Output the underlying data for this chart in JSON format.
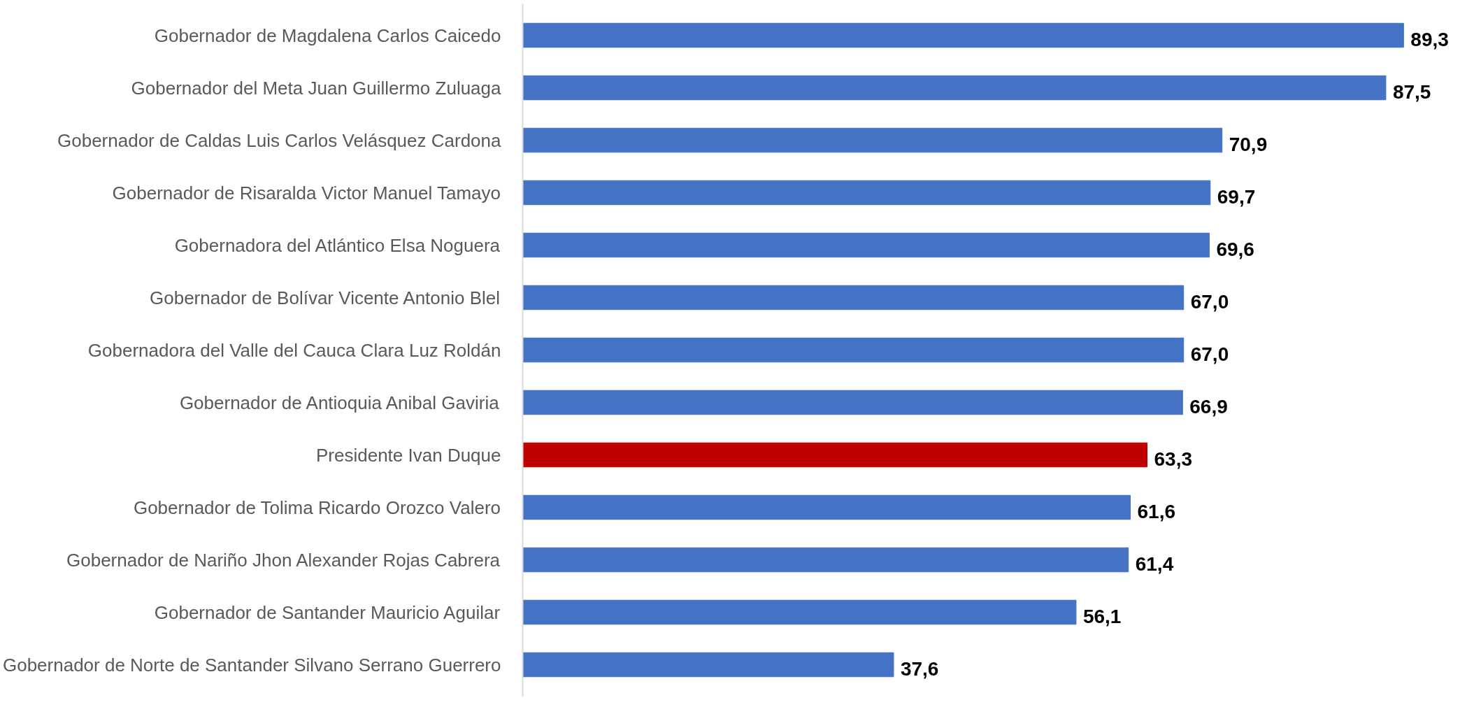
{
  "chart_data": {
    "type": "bar",
    "orientation": "horizontal",
    "categories": [
      "Gobernador de Magdalena Carlos Caicedo",
      "Gobernador del Meta Juan Guillermo Zuluaga",
      "Gobernador de Caldas Luis Carlos Velásquez Cardona",
      "Gobernador de Risaralda Victor Manuel Tamayo",
      "Gobernadora del Atlántico Elsa Noguera",
      "Gobernador de Bolívar Vicente Antonio Blel",
      "Gobernadora del Valle del Cauca Clara Luz Roldán",
      "Gobernador de Antioquia Anibal Gaviria",
      "Presidente Ivan Duque",
      "Gobernador de Tolima Ricardo Orozco Valero",
      "Gobernador de Nariño Jhon Alexander Rojas Cabrera",
      "Gobernador de Santander Mauricio Aguilar",
      "Gobernador de Norte de Santander Silvano Serrano Guerrero"
    ],
    "values": [
      89.3,
      87.5,
      70.9,
      69.7,
      69.6,
      67.0,
      67.0,
      66.9,
      63.3,
      61.6,
      61.4,
      56.1,
      37.6
    ],
    "value_labels": [
      "89,3",
      "87,5",
      "70,9",
      "69,7",
      "69,6",
      "67,0",
      "67,0",
      "66,9",
      "63,3",
      "61,6",
      "61,4",
      "56,1",
      "37,6"
    ],
    "colors": [
      "#4472c4",
      "#4472c4",
      "#4472c4",
      "#4472c4",
      "#4472c4",
      "#4472c4",
      "#4472c4",
      "#4472c4",
      "#c00000",
      "#4472c4",
      "#4472c4",
      "#4472c4",
      "#4472c4"
    ],
    "tick_labels": "y",
    "grid": false
  }
}
